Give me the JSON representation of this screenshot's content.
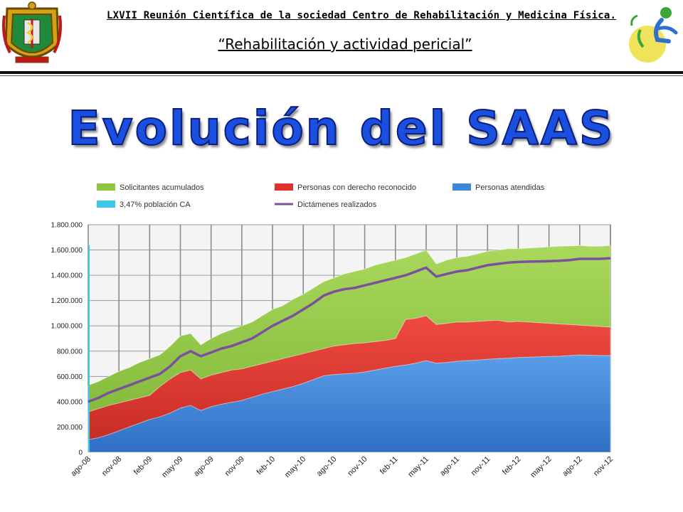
{
  "header": {
    "line1": "LXVII Reunión Científica de la sociedad Centro de Rehabilitación y Medicina Física.",
    "line2": "“Rehabilitación y actividad pericial”"
  },
  "title": "Evolución del SAAS",
  "chart_data": {
    "type": "area",
    "title": "Evolución del SAAS",
    "xlabel": "",
    "ylabel": "",
    "ylim": [
      0,
      1800000
    ],
    "yticks": [
      "0",
      "200.000",
      "400.000",
      "600.000",
      "800.000",
      "1.000.000",
      "1.200.000",
      "1.400.000",
      "1.600.000",
      "1.800.000"
    ],
    "x_tick_labels": [
      "ago-08",
      "nov-08",
      "feb-09",
      "may-09",
      "ago-09",
      "nov-09",
      "feb-10",
      "may-10",
      "ago-10",
      "nov-10",
      "feb-11",
      "may-11",
      "ago-11",
      "nov-11",
      "feb-12",
      "may-12",
      "ago-12",
      "nov-12"
    ],
    "grid": true,
    "legend_position": "top",
    "legend": [
      {
        "name": "Solicitantes acumulados",
        "color": "#8fc63e",
        "kind": "area"
      },
      {
        "name": "Personas con derecho reconocido",
        "color": "#e0332c",
        "kind": "area"
      },
      {
        "name": "Personas atendidas",
        "color": "#3f86d9",
        "kind": "area"
      },
      {
        "name": "3,47% población CA",
        "color": "#3fc8e6",
        "kind": "area"
      },
      {
        "name": "Dictámenes realizados",
        "color": "#7b519e",
        "kind": "line"
      }
    ],
    "months": [
      "ago-08",
      "sep-08",
      "oct-08",
      "nov-08",
      "dic-08",
      "ene-09",
      "feb-09",
      "mar-09",
      "abr-09",
      "may-09",
      "jun-09",
      "jul-09",
      "ago-09",
      "sep-09",
      "oct-09",
      "nov-09",
      "dic-09",
      "ene-10",
      "feb-10",
      "mar-10",
      "abr-10",
      "may-10",
      "jun-10",
      "jul-10",
      "ago-10",
      "sep-10",
      "oct-10",
      "nov-10",
      "dic-10",
      "ene-11",
      "feb-11",
      "mar-11",
      "abr-11",
      "may-11",
      "jun-11",
      "jul-11",
      "ago-11",
      "sep-11",
      "oct-11",
      "nov-11",
      "dic-11",
      "ene-12",
      "feb-12",
      "mar-12",
      "abr-12",
      "may-12",
      "jun-12",
      "jul-12",
      "ago-12",
      "sep-12",
      "oct-12",
      "nov-12"
    ],
    "series": [
      {
        "name": "Solicitantes acumulados",
        "values": [
          530000,
          560000,
          600000,
          640000,
          670000,
          710000,
          740000,
          770000,
          840000,
          920000,
          940000,
          850000,
          900000,
          940000,
          970000,
          1000000,
          1030000,
          1080000,
          1130000,
          1160000,
          1210000,
          1250000,
          1300000,
          1350000,
          1380000,
          1410000,
          1430000,
          1450000,
          1480000,
          1500000,
          1520000,
          1540000,
          1570000,
          1600000,
          1490000,
          1520000,
          1540000,
          1550000,
          1570000,
          1590000,
          1600000,
          1610000,
          1610000,
          1615000,
          1620000,
          1625000,
          1630000,
          1632000,
          1635000,
          1630000,
          1630000,
          1635000
        ]
      },
      {
        "name": "Personas con derecho reconocido",
        "values": [
          320000,
          345000,
          370000,
          390000,
          410000,
          430000,
          450000,
          520000,
          580000,
          630000,
          650000,
          580000,
          610000,
          630000,
          650000,
          660000,
          680000,
          700000,
          720000,
          740000,
          760000,
          780000,
          800000,
          820000,
          840000,
          850000,
          860000,
          865000,
          875000,
          885000,
          900000,
          1050000,
          1060000,
          1080000,
          1010000,
          1020000,
          1030000,
          1030000,
          1035000,
          1040000,
          1045000,
          1030000,
          1035000,
          1030000,
          1025000,
          1020000,
          1015000,
          1010000,
          1005000,
          1000000,
          995000,
          990000
        ]
      },
      {
        "name": "Personas atendidas",
        "values": [
          100000,
          115000,
          140000,
          170000,
          200000,
          230000,
          260000,
          280000,
          310000,
          350000,
          370000,
          330000,
          360000,
          380000,
          395000,
          410000,
          435000,
          460000,
          480000,
          500000,
          520000,
          545000,
          575000,
          605000,
          615000,
          620000,
          625000,
          635000,
          650000,
          665000,
          680000,
          690000,
          705000,
          725000,
          705000,
          710000,
          720000,
          725000,
          730000,
          735000,
          740000,
          745000,
          750000,
          752000,
          755000,
          758000,
          760000,
          765000,
          770000,
          768000,
          765000,
          765000
        ]
      },
      {
        "name": "3,47% población CA",
        "values": [
          1640000
        ]
      },
      {
        "name": "Dictámenes realizados",
        "values": [
          400000,
          430000,
          470000,
          500000,
          530000,
          560000,
          590000,
          620000,
          680000,
          760000,
          800000,
          760000,
          790000,
          820000,
          840000,
          870000,
          900000,
          950000,
          1000000,
          1040000,
          1080000,
          1130000,
          1180000,
          1240000,
          1270000,
          1290000,
          1300000,
          1320000,
          1340000,
          1360000,
          1380000,
          1400000,
          1430000,
          1460000,
          1390000,
          1410000,
          1430000,
          1440000,
          1460000,
          1480000,
          1490000,
          1500000,
          1505000,
          1508000,
          1510000,
          1512000,
          1515000,
          1520000,
          1530000,
          1530000,
          1530000,
          1535000
        ]
      }
    ]
  }
}
